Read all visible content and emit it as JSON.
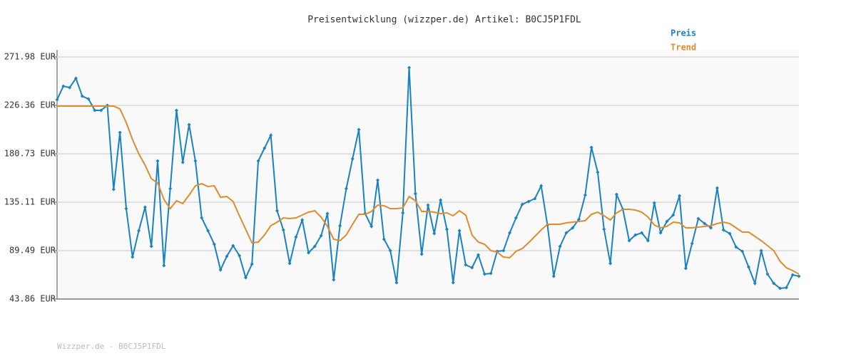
{
  "chart_data": {
    "type": "line",
    "title": "Preisentwicklung (wizzper.de) Artikel: B0CJ5P1FDL",
    "source": "Wizzper.de - B0CJ5P1FDL",
    "ylim": [
      43.86,
      271.98
    ],
    "yticks": [
      {
        "value": 43.86,
        "label": "43.86 EUR"
      },
      {
        "value": 89.49,
        "label": "89.49 EUR"
      },
      {
        "value": 135.11,
        "label": "135.11 EUR"
      },
      {
        "value": 180.73,
        "label": "180.73 EUR"
      },
      {
        "value": 226.36,
        "label": "226.36 EUR"
      },
      {
        "value": 271.98,
        "label": "271.98 EUR"
      }
    ],
    "grid": true,
    "legend": "top-right",
    "series": [
      {
        "name": "Preis",
        "color": "#1b82c2",
        "markers": true,
        "values": [
          231.72,
          244.47,
          243.13,
          251.85,
          235.08,
          232.39,
          221.66,
          221.66,
          226.36,
          147.18,
          200.86,
          129.07,
          83.45,
          108.27,
          130.41,
          93.51,
          174.02,
          75.39,
          147.85,
          221.66,
          172.68,
          208.24,
          174.02,
          120.35,
          108.27,
          95.52,
          71.37,
          84.12,
          94.18,
          84.79,
          63.99,
          76.74,
          174.02,
          186.1,
          198.18,
          127.06,
          108.94,
          77.41,
          102.23,
          118.33,
          87.47,
          93.51,
          103.57,
          124.37,
          61.98,
          112.97,
          147.85,
          176.04,
          203.54,
          124.37,
          112.3,
          155.91,
          100.22,
          89.48,
          59.29,
          125.04,
          261.92,
          143.16,
          86.13,
          132.42,
          105.59,
          137.12,
          109.61,
          59.29,
          108.27,
          76.07,
          73.38,
          85.46,
          67.34,
          68.01,
          88.81,
          89.48,
          106.26,
          120.35,
          133.1,
          135.78,
          138.46,
          150.54,
          113.64,
          65.33,
          93.51,
          106.26,
          110.95,
          119.01,
          141.82,
          186.77,
          163.29,
          109.61,
          77.41,
          142.49,
          128.4,
          98.88,
          104.24,
          106.26,
          98.88,
          134.44,
          106.26,
          116.99,
          123.03,
          141.15,
          72.71,
          96.19,
          119.68,
          114.98,
          110.95,
          148.53,
          108.94,
          105.59,
          92.84,
          88.81,
          74.05,
          58.62,
          89.48,
          67.34,
          58.62,
          53.92,
          54.6,
          66.67,
          65.33
        ]
      },
      {
        "name": "Trend",
        "color": "#e08c2c",
        "markers": false,
        "values": [
          225.68,
          225.68,
          225.68,
          225.68,
          225.68,
          225.68,
          225.68,
          225.68,
          225.68,
          225.68,
          223.0,
          210.25,
          194.15,
          180.73,
          170.0,
          157.25,
          153.22,
          137.79,
          129.07,
          136.45,
          133.77,
          141.82,
          150.54,
          152.55,
          149.87,
          150.54,
          139.8,
          140.48,
          135.78,
          122.36,
          109.61,
          96.86,
          97.54,
          104.24,
          112.97,
          116.32,
          120.35,
          119.68,
          120.35,
          123.03,
          125.71,
          127.06,
          121.02,
          112.3,
          100.22,
          98.88,
          104.24,
          114.31,
          123.7,
          123.7,
          126.39,
          132.42,
          131.75,
          129.07,
          129.07,
          129.74,
          140.48,
          136.45,
          126.39,
          126.39,
          125.71,
          124.37,
          125.04,
          122.36,
          127.06,
          123.03,
          104.24,
          97.54,
          95.52,
          89.48,
          88.14,
          83.45,
          82.77,
          88.81,
          91.5,
          96.86,
          102.9,
          108.94,
          114.31,
          114.31,
          114.31,
          115.65,
          116.32,
          116.99,
          117.66,
          123.7,
          125.71,
          122.36,
          118.33,
          125.04,
          128.4,
          128.4,
          127.73,
          125.71,
          121.02,
          113.64,
          110.95,
          112.3,
          116.32,
          115.65,
          110.95,
          110.95,
          111.62,
          112.3,
          112.97,
          114.98,
          116.32,
          114.98,
          110.95,
          106.93,
          106.93,
          102.9,
          98.88,
          94.18,
          89.48,
          79.42,
          73.38,
          70.7,
          67.34
        ]
      }
    ]
  }
}
